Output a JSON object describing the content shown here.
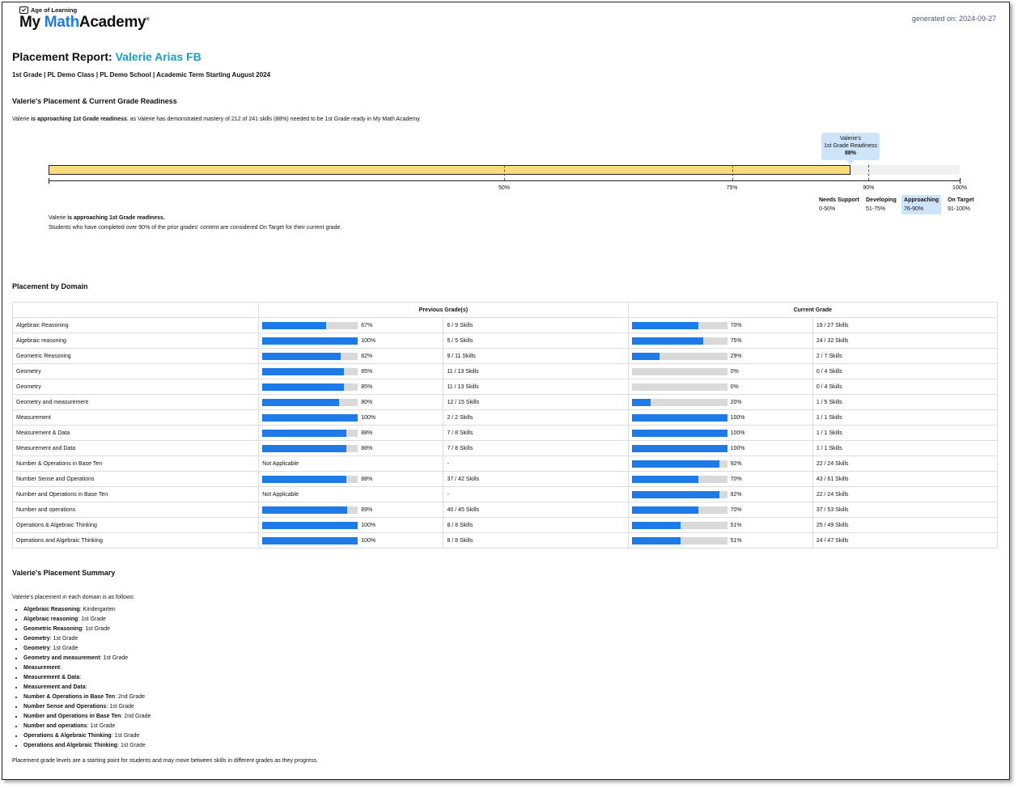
{
  "brand": {
    "company": "Age of Learning",
    "name_prefix": "My",
    "name_math": "Math",
    "name_suffix": "Academy"
  },
  "generated": "generated on: 2024-09-27",
  "report": {
    "title_prefix": "Placement Report: ",
    "student": "Valerie Arias FB",
    "subtitle": "1st Grade | PL Demo Class | PL Demo School | Academic Term Starting August 2024"
  },
  "readiness": {
    "heading": "Valerie's Placement & Current Grade Readiness",
    "intro_pre": "Valerie ",
    "intro_bold": "is approaching 1st Grade readiness",
    "intro_post": ", as Valerie has demonstrated mastery of 212 of 241 skills (88%) needed to be 1st Grade ready in My Math Academy.",
    "percent": 88,
    "bubble_line1": "Valerie's",
    "bubble_line2": "1st Grade Readiness",
    "bubble_value": "88%",
    "ticks": [
      {
        "label": "50%",
        "value": 50
      },
      {
        "label": "75%",
        "value": 75
      },
      {
        "label": "90%",
        "value": 90
      },
      {
        "label": "100%",
        "value": 100
      }
    ],
    "legend": [
      {
        "name": "Needs Support",
        "range": "0-50%",
        "active": false
      },
      {
        "name": "Developing",
        "range": "51-75%",
        "active": false
      },
      {
        "name": "Approaching",
        "range": "76-90%",
        "active": true
      },
      {
        "name": "On Target",
        "range": "91-100%",
        "active": false
      }
    ],
    "note_pre": "Valerie ",
    "note_bold": "is approaching 1st Grade readiness.",
    "note2": "Students who have completed over 90% of the prior grades' content are considered On Target for their current grade."
  },
  "domains": {
    "heading": "Placement by Domain",
    "col_prev": "Previous Grade(s)",
    "col_curr": "Current Grade",
    "rows": [
      {
        "name": "Algebraic Reasoning",
        "prev_pct": 67,
        "prev_label": "67%",
        "prev_skills": "6 / 9 Skills",
        "curr_pct": 70,
        "curr_label": "70%",
        "curr_skills": "19 / 27 Skills"
      },
      {
        "name": "Algebraic reasoning",
        "prev_pct": 100,
        "prev_label": "100%",
        "prev_skills": "5 / 5 Skills",
        "curr_pct": 75,
        "curr_label": "75%",
        "curr_skills": "24 / 32 Skills"
      },
      {
        "name": "Geometric Reasoning",
        "prev_pct": 82,
        "prev_label": "82%",
        "prev_skills": "9 / 11 Skills",
        "curr_pct": 29,
        "curr_label": "29%",
        "curr_skills": "2 / 7 Skills"
      },
      {
        "name": "Geometry",
        "prev_pct": 85,
        "prev_label": "85%",
        "prev_skills": "11 / 13 Skills",
        "curr_pct": 0,
        "curr_label": "0%",
        "curr_skills": "0 / 4 Skills"
      },
      {
        "name": "Geometry",
        "prev_pct": 85,
        "prev_label": "85%",
        "prev_skills": "11 / 13 Skills",
        "curr_pct": 0,
        "curr_label": "0%",
        "curr_skills": "0 / 4 Skills"
      },
      {
        "name": "Geometry and measurement",
        "prev_pct": 80,
        "prev_label": "80%",
        "prev_skills": "12 / 15 Skills",
        "curr_pct": 20,
        "curr_label": "20%",
        "curr_skills": "1 / 5 Skills"
      },
      {
        "name": "Measurement",
        "prev_pct": 100,
        "prev_label": "100%",
        "prev_skills": "2 / 2 Skills",
        "curr_pct": 100,
        "curr_label": "100%",
        "curr_skills": "1 / 1 Skills"
      },
      {
        "name": "Measurement & Data",
        "prev_pct": 88,
        "prev_label": "88%",
        "prev_skills": "7 / 8 Skills",
        "curr_pct": 100,
        "curr_label": "100%",
        "curr_skills": "1 / 1 Skills"
      },
      {
        "name": "Measurement and Data",
        "prev_pct": 88,
        "prev_label": "88%",
        "prev_skills": "7 / 8 Skills",
        "curr_pct": 100,
        "curr_label": "100%",
        "curr_skills": "1 / 1 Skills"
      },
      {
        "name": "Number & Operations in Base Ten",
        "prev_na": "Not Applicable",
        "prev_skills": "-",
        "curr_pct": 92,
        "curr_label": "92%",
        "curr_skills": "22 / 24 Skills"
      },
      {
        "name": "Number Sense and Operations",
        "prev_pct": 88,
        "prev_label": "88%",
        "prev_skills": "37 / 42 Skills",
        "curr_pct": 70,
        "curr_label": "70%",
        "curr_skills": "43 / 61 Skills"
      },
      {
        "name": "Number and Operations in Base Ten",
        "prev_na": "Not Applicable",
        "prev_skills": "-",
        "curr_pct": 92,
        "curr_label": "92%",
        "curr_skills": "22 / 24 Skills"
      },
      {
        "name": "Number and operations",
        "prev_pct": 89,
        "prev_label": "89%",
        "prev_skills": "40 / 45 Skills",
        "curr_pct": 70,
        "curr_label": "70%",
        "curr_skills": "37 / 53 Skills"
      },
      {
        "name": "Operations & Algebraic Thinking",
        "prev_pct": 100,
        "prev_label": "100%",
        "prev_skills": "8 / 8 Skills",
        "curr_pct": 51,
        "curr_label": "51%",
        "curr_skills": "25 / 49 Skills"
      },
      {
        "name": "Operations and Algebraic Thinking",
        "prev_pct": 100,
        "prev_label": "100%",
        "prev_skills": "8 / 8 Skills",
        "curr_pct": 51,
        "curr_label": "51%",
        "curr_skills": "24 / 47 Skills"
      }
    ]
  },
  "summary": {
    "heading": "Valerie's Placement Summary",
    "intro": "Valerie's placement in each domain is as follows:",
    "items": [
      {
        "domain": "Algebraic Reasoning",
        "grade": "Kindergarten"
      },
      {
        "domain": "Algebraic reasoning",
        "grade": "1st Grade"
      },
      {
        "domain": "Geometric Reasoning",
        "grade": "1st Grade"
      },
      {
        "domain": "Geometry",
        "grade": "1st Grade"
      },
      {
        "domain": "Geometry",
        "grade": "1st Grade"
      },
      {
        "domain": "Geometry and measurement",
        "grade": "1st Grade"
      },
      {
        "domain": "Measurement",
        "grade": ""
      },
      {
        "domain": "Measurement & Data",
        "grade": ""
      },
      {
        "domain": "Measurement and Data",
        "grade": ""
      },
      {
        "domain": "Number & Operations in Base Ten",
        "grade": "2nd Grade"
      },
      {
        "domain": "Number Sense and Operations",
        "grade": "1st Grade"
      },
      {
        "domain": "Number and Operations in Base Ten",
        "grade": "2nd Grade"
      },
      {
        "domain": "Number and operations",
        "grade": "1st Grade"
      },
      {
        "domain": "Operations & Algebraic Thinking",
        "grade": "1st Grade"
      },
      {
        "domain": "Operations and Algebraic Thinking",
        "grade": "1st Grade"
      }
    ],
    "footer": "Placement grade levels are a starting point for students and may move between skills in different grades as they progress."
  }
}
